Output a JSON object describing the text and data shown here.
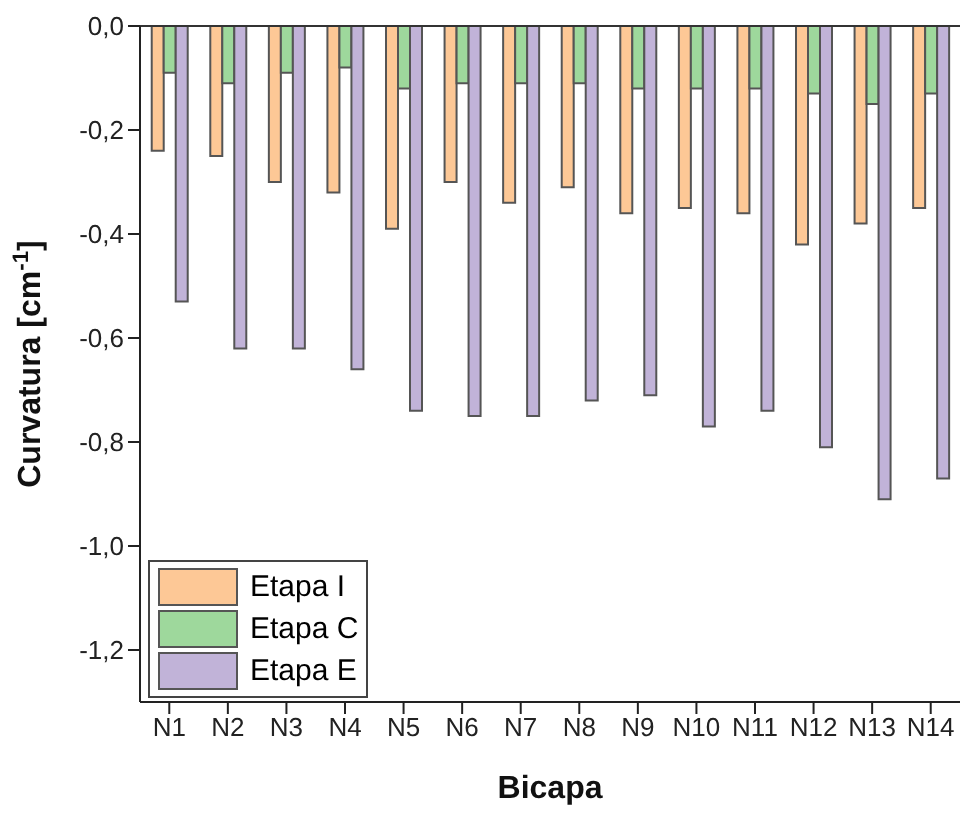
{
  "chart_data": {
    "type": "bar",
    "xlabel": "Bicapa",
    "ylabel": "Curvatura [cm$^{-1}$]",
    "categories": [
      "N1",
      "N2",
      "N3",
      "N4",
      "N5",
      "N6",
      "N7",
      "N8",
      "N9",
      "N10",
      "N11",
      "N12",
      "N13",
      "N14"
    ],
    "series": [
      {
        "name": "Etapa I",
        "color": "#fdc896",
        "values": [
          -0.24,
          -0.25,
          -0.3,
          -0.32,
          -0.39,
          -0.3,
          -0.34,
          -0.31,
          -0.36,
          -0.35,
          -0.36,
          -0.42,
          -0.38,
          -0.35
        ]
      },
      {
        "name": "Etapa C",
        "color": "#9ed89c",
        "values": [
          -0.09,
          -0.11,
          -0.09,
          -0.08,
          -0.12,
          -0.11,
          -0.11,
          -0.11,
          -0.12,
          -0.12,
          -0.12,
          -0.13,
          -0.15,
          -0.13
        ]
      },
      {
        "name": "Etapa E",
        "color": "#c1b3d8",
        "values": [
          -0.53,
          -0.62,
          -0.62,
          -0.66,
          -0.74,
          -0.75,
          -0.75,
          -0.72,
          -0.71,
          -0.77,
          -0.74,
          -0.81,
          -0.91,
          -0.87
        ]
      }
    ],
    "ylim": [
      -1.3,
      0
    ],
    "yticks": [
      {
        "value": 0,
        "label": "0,0"
      },
      {
        "value": -0.2,
        "label": "-0,2"
      },
      {
        "value": -0.4,
        "label": "-0,4"
      },
      {
        "value": -0.6,
        "label": "-0,6"
      },
      {
        "value": -0.8,
        "label": "-0,8"
      },
      {
        "value": -1.0,
        "label": "-1,0"
      },
      {
        "value": -1.2,
        "label": "-1,2"
      }
    ],
    "grid": false,
    "legend": "bottom left"
  }
}
